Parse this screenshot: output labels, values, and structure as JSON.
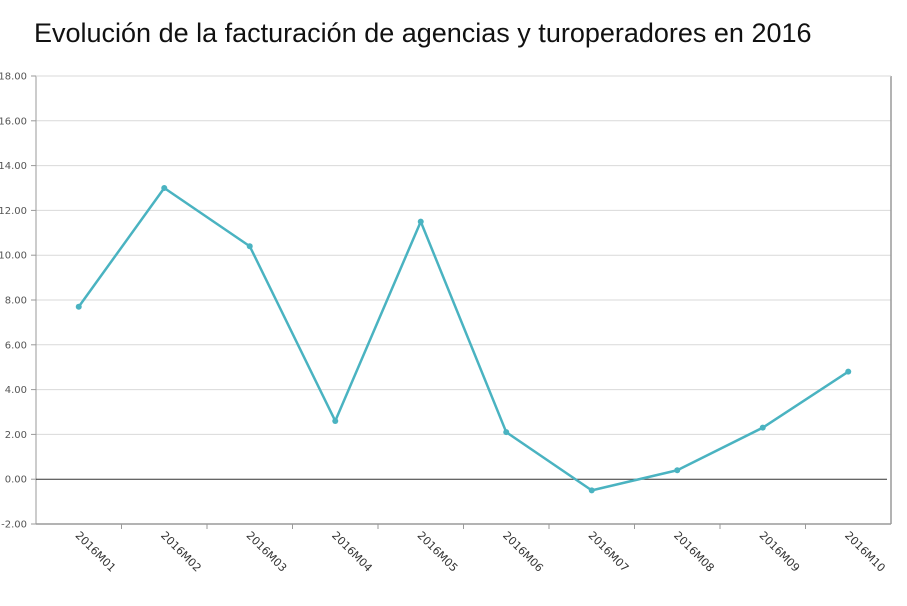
{
  "chart_data": {
    "type": "line",
    "title": "Evolución de la facturación de agencias y turoperadores en 2016",
    "xlabel": "",
    "ylabel": "",
    "categories": [
      "2016M01",
      "2016M02",
      "2016M03",
      "2016M04",
      "2016M05",
      "2016M06",
      "2016M07",
      "2016M08",
      "2016M09",
      "2016M10"
    ],
    "series": [
      {
        "values": [
          7.7,
          13.0,
          10.4,
          2.6,
          11.5,
          2.1,
          -0.5,
          0.4,
          2.3,
          4.8
        ]
      }
    ],
    "ylim": [
      -2,
      18
    ],
    "yticks": [
      "-2.00",
      "0.00",
      "2.00",
      "4.00",
      "6.00",
      "8.00",
      "10.00",
      "12.00",
      "14.00",
      "16.00",
      "18.00"
    ],
    "grid": true,
    "legend": "none",
    "colors": {
      "line": "#4ab3c1",
      "grid": "#d9d9d9",
      "zero_line": "#333333",
      "axis": "#9a9a9a"
    }
  }
}
